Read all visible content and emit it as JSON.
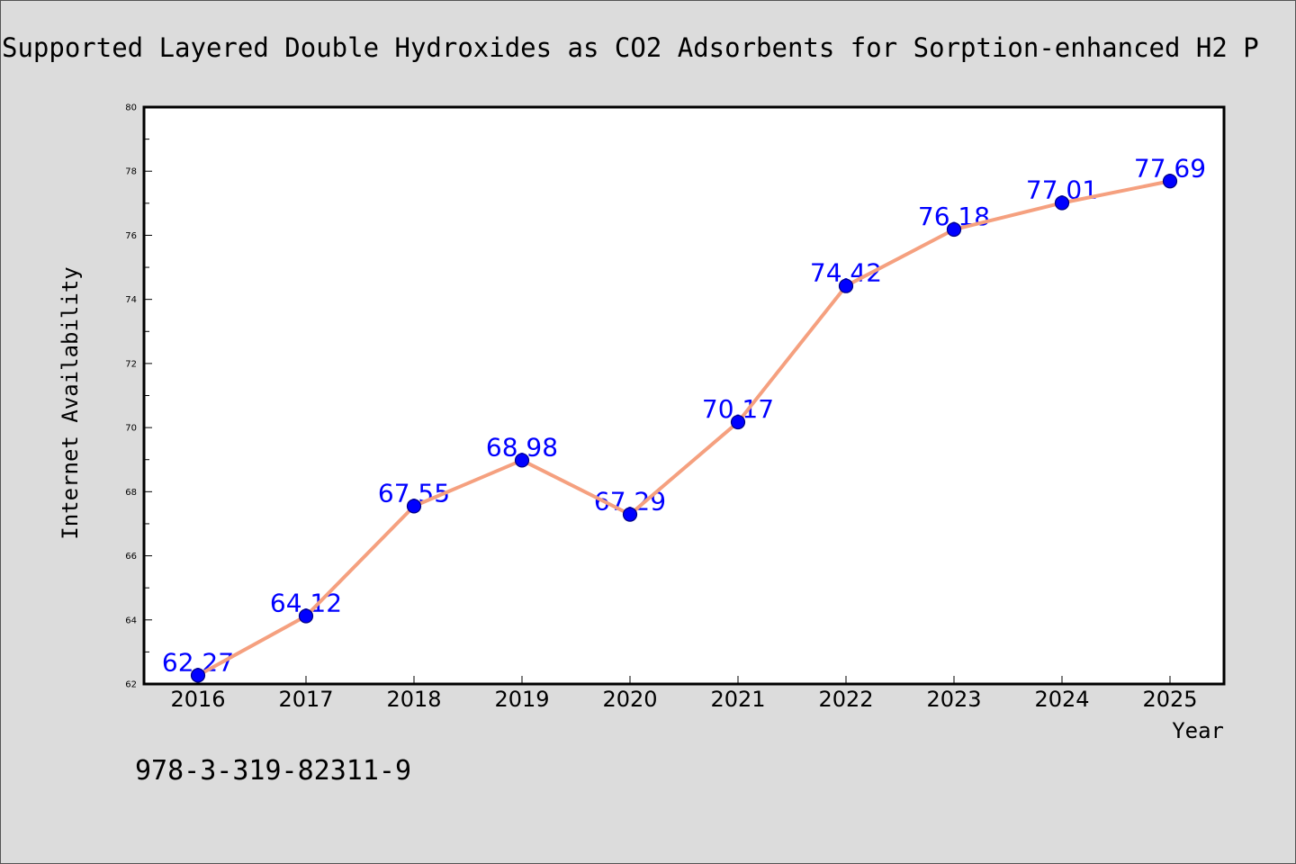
{
  "colors": {
    "figure_background": "#dcdcdc",
    "figure_edge": "#555555",
    "plot_background": "#ffffff",
    "line": "#f5a07f",
    "marker": "#0000ff",
    "marker_edge": "#000080",
    "data_label": "#0000ff"
  },
  "chart_data": {
    "type": "line",
    "title": "Supported Layered Double Hydroxides as CO2 Adsorbents for Sorption-enhanced H2 P",
    "xlabel": "Year",
    "ylabel": "Internet Availability",
    "x": [
      2016,
      2017,
      2018,
      2019,
      2020,
      2021,
      2022,
      2023,
      2024,
      2025
    ],
    "series": [
      {
        "values": [
          62.27,
          64.12,
          67.55,
          68.98,
          67.29,
          70.17,
          74.42,
          76.18,
          77.01,
          77.69
        ]
      }
    ],
    "xlim": [
      2015.5,
      2025.5
    ],
    "ylim": [
      62,
      80
    ],
    "yticks": [
      62,
      64,
      66,
      68,
      70,
      72,
      74,
      76,
      78,
      80
    ],
    "y_minor_ticks": true,
    "data_labels": true,
    "grid": false,
    "annotations": [
      "978-3-319-82311-9"
    ]
  }
}
